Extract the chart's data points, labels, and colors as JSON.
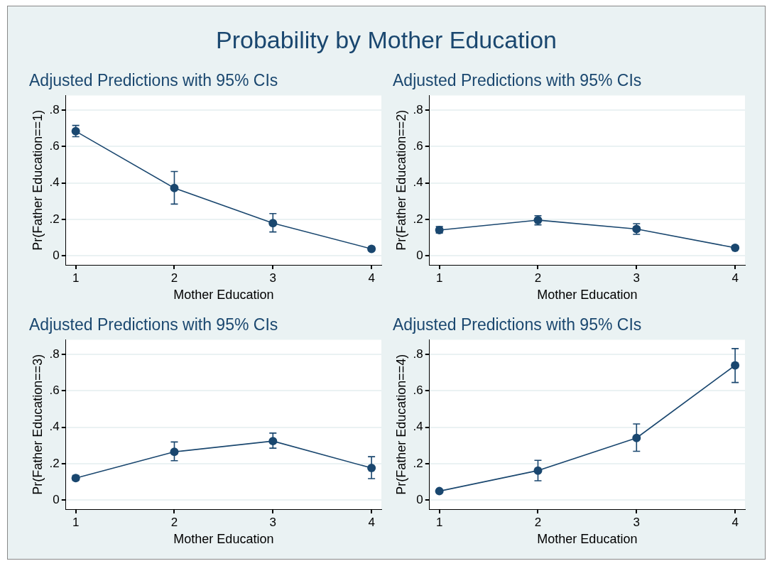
{
  "chart_data": [
    {
      "type": "line",
      "title": "Adjusted Predictions with 95% CIs",
      "annotations": [
        "Probability by Mother Education"
      ],
      "xlabel": "Mother Education",
      "ylabel": "Pr(Father Education==1)",
      "x": [
        1,
        2,
        3,
        4
      ],
      "xlim": [
        0.9,
        4.1
      ],
      "xticks": [
        1,
        2,
        3,
        4
      ],
      "ylim": [
        -0.05,
        0.88
      ],
      "yticks": [
        {
          "value": 0,
          "label": "0"
        },
        {
          "value": 0.2,
          "label": ".2"
        },
        {
          "value": 0.4,
          "label": ".4"
        },
        {
          "value": 0.6,
          "label": ".6"
        },
        {
          "value": 0.8,
          "label": ".8"
        }
      ],
      "grid": "y",
      "marker": "circle",
      "line_style": "solid",
      "series": [
        {
          "color": "#1a476f",
          "values": [
            0.684,
            0.372,
            0.179,
            0.038
          ],
          "errors": [
            [
              0.654,
              0.716
            ],
            [
              0.284,
              0.463
            ],
            [
              0.131,
              0.232
            ],
            [
              0.03,
              0.045
            ]
          ]
        }
      ]
    },
    {
      "type": "line",
      "title": "Adjusted Predictions with 95% CIs",
      "xlabel": "Mother Education",
      "ylabel": "Pr(Father Education==2)",
      "x": [
        1,
        2,
        3,
        4
      ],
      "xlim": [
        0.9,
        4.1
      ],
      "xticks": [
        1,
        2,
        3,
        4
      ],
      "ylim": [
        -0.05,
        0.88
      ],
      "yticks": [
        {
          "value": 0,
          "label": "0"
        },
        {
          "value": 0.2,
          "label": ".2"
        },
        {
          "value": 0.4,
          "label": ".4"
        },
        {
          "value": 0.6,
          "label": ".6"
        },
        {
          "value": 0.8,
          "label": ".8"
        }
      ],
      "grid": "y",
      "marker": "circle",
      "line_style": "solid",
      "series": [
        {
          "color": "#1a476f",
          "values": [
            0.141,
            0.196,
            0.147,
            0.044
          ],
          "errors": [
            [
              0.125,
              0.16
            ],
            [
              0.17,
              0.22
            ],
            [
              0.118,
              0.176
            ],
            [
              0.035,
              0.055
            ]
          ]
        }
      ]
    },
    {
      "type": "line",
      "title": "Adjusted Predictions with 95% CIs",
      "xlabel": "Mother Education",
      "ylabel": "Pr(Father Education==3)",
      "x": [
        1,
        2,
        3,
        4
      ],
      "xlim": [
        0.9,
        4.1
      ],
      "xticks": [
        1,
        2,
        3,
        4
      ],
      "ylim": [
        -0.05,
        0.88
      ],
      "yticks": [
        {
          "value": 0,
          "label": "0"
        },
        {
          "value": 0.2,
          "label": ".2"
        },
        {
          "value": 0.4,
          "label": ".4"
        },
        {
          "value": 0.6,
          "label": ".6"
        },
        {
          "value": 0.8,
          "label": ".8"
        }
      ],
      "grid": "y",
      "marker": "circle",
      "line_style": "solid",
      "series": [
        {
          "color": "#1a476f",
          "values": [
            0.121,
            0.265,
            0.324,
            0.176
          ],
          "errors": [
            [
              0.11,
              0.135
            ],
            [
              0.216,
              0.319
            ],
            [
              0.285,
              0.368
            ],
            [
              0.118,
              0.238
            ]
          ]
        }
      ]
    },
    {
      "type": "line",
      "title": "Adjusted Predictions with 95% CIs",
      "xlabel": "Mother Education",
      "ylabel": "Pr(Father Education==4)",
      "x": [
        1,
        2,
        3,
        4
      ],
      "xlim": [
        0.9,
        4.1
      ],
      "xticks": [
        1,
        2,
        3,
        4
      ],
      "ylim": [
        -0.05,
        0.88
      ],
      "yticks": [
        {
          "value": 0,
          "label": "0"
        },
        {
          "value": 0.2,
          "label": ".2"
        },
        {
          "value": 0.4,
          "label": ".4"
        },
        {
          "value": 0.6,
          "label": ".6"
        },
        {
          "value": 0.8,
          "label": ".8"
        }
      ],
      "grid": "y",
      "marker": "circle",
      "line_style": "solid",
      "series": [
        {
          "color": "#1a476f",
          "values": [
            0.049,
            0.162,
            0.341,
            0.74
          ],
          "errors": [
            null,
            [
              0.106,
              0.218
            ],
            [
              0.268,
              0.418
            ],
            [
              0.646,
              0.832
            ]
          ]
        }
      ]
    }
  ]
}
